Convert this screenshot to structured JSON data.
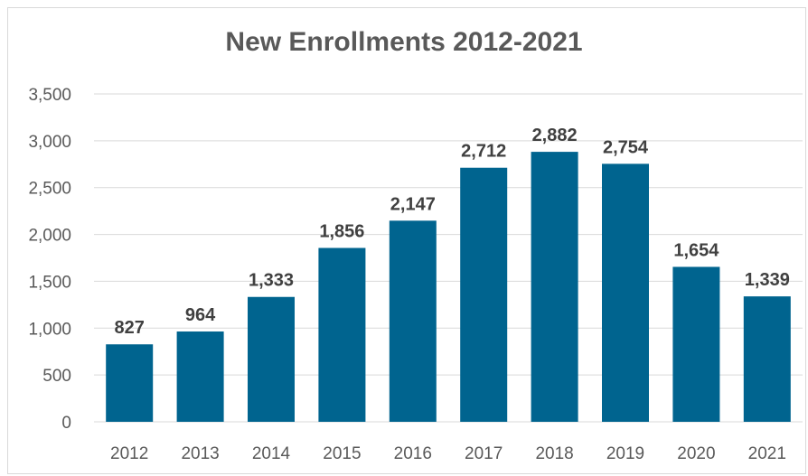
{
  "chart_data": {
    "type": "bar",
    "title": "New Enrollments 2012-2021",
    "xlabel": "",
    "ylabel": "",
    "categories": [
      "2012",
      "2013",
      "2014",
      "2015",
      "2016",
      "2017",
      "2018",
      "2019",
      "2020",
      "2021"
    ],
    "values": [
      827,
      964,
      1333,
      1856,
      2147,
      2712,
      2882,
      2754,
      1654,
      1339
    ],
    "data_labels": [
      "827",
      "964",
      "1,333",
      "1,856",
      "2,147",
      "2,712",
      "2,882",
      "2,754",
      "1,654",
      "1,339"
    ],
    "ylim": [
      0,
      3500
    ],
    "yticks": [
      0,
      500,
      1000,
      1500,
      2000,
      2500,
      3000,
      3500
    ],
    "ytick_labels": [
      "0",
      "500",
      "1,000",
      "1,500",
      "2,000",
      "2,500",
      "3,000",
      "3,500"
    ],
    "grid": true,
    "legend": "none",
    "bar_color": "#00648f"
  }
}
